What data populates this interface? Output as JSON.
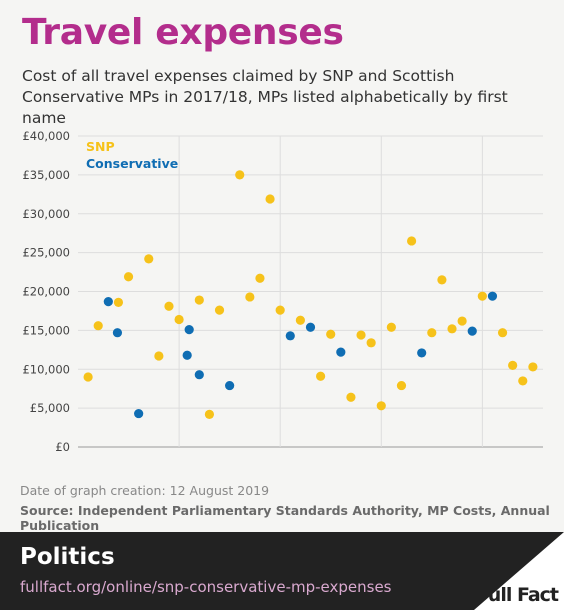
{
  "title": "Travel expenses",
  "subtitle": "Cost of all travel expenses claimed by SNP and Scottish Conservative MPs in 2017/18, MPs listed alphabetically by first name",
  "footnote_date": "Date of graph creation: 12 August 2019",
  "footnote_source": "Source: Independent Parliamentary Standards Authority, MP Costs, Annual Publication",
  "footer": {
    "category": "Politics",
    "url": "fullfact.org/online/snp-conservative-mp-expenses",
    "logo_text": "Full Fact"
  },
  "colors": {
    "SNP": "#f6c21a",
    "Conservative": "#0f6db3",
    "title": "#b32d8c"
  },
  "chart_data": {
    "type": "scatter",
    "title": "",
    "xlabel": "",
    "ylabel": "",
    "ylim": [
      0,
      40000
    ],
    "yticks": [
      0,
      5000,
      10000,
      15000,
      20000,
      25000,
      30000,
      35000,
      40000
    ],
    "ytick_labels": [
      "£0",
      "£5,000",
      "£10,000",
      "£15,000",
      "£20,000",
      "£25,000",
      "£30,000",
      "£35,000",
      "£40,000"
    ],
    "grid": true,
    "legend_position": "top-left",
    "series": [
      {
        "name": "SNP",
        "points": [
          [
            1,
            9000
          ],
          [
            2,
            15600
          ],
          [
            4,
            18600
          ],
          [
            5,
            21900
          ],
          [
            7,
            24200
          ],
          [
            8,
            11700
          ],
          [
            9,
            18100
          ],
          [
            10,
            16400
          ],
          [
            12,
            18900
          ],
          [
            13,
            4200
          ],
          [
            14,
            17600
          ],
          [
            16,
            35000
          ],
          [
            17,
            19300
          ],
          [
            18,
            21700
          ],
          [
            19,
            31900
          ],
          [
            20,
            17600
          ],
          [
            22,
            16300
          ],
          [
            24,
            9100
          ],
          [
            25,
            14500
          ],
          [
            27,
            6400
          ],
          [
            28,
            14400
          ],
          [
            29,
            13400
          ],
          [
            30,
            5300
          ],
          [
            31,
            15400
          ],
          [
            32,
            7900
          ],
          [
            33,
            26500
          ],
          [
            35,
            14700
          ],
          [
            36,
            21500
          ],
          [
            37,
            15200
          ],
          [
            38,
            16200
          ],
          [
            40,
            19400
          ],
          [
            42,
            14700
          ],
          [
            43,
            10500
          ],
          [
            44,
            8500
          ],
          [
            45,
            10300
          ]
        ]
      },
      {
        "name": "Conservative",
        "points": [
          [
            3,
            18700
          ],
          [
            6,
            4300
          ],
          [
            11,
            15100
          ],
          [
            15,
            7900
          ],
          [
            12,
            9300
          ],
          [
            21,
            14300
          ],
          [
            23,
            15400
          ],
          [
            26,
            12200
          ],
          [
            34,
            12100
          ],
          [
            39,
            14900
          ],
          [
            41,
            19400
          ],
          [
            10.8,
            11800
          ],
          [
            3.9,
            14700
          ]
        ]
      }
    ]
  }
}
